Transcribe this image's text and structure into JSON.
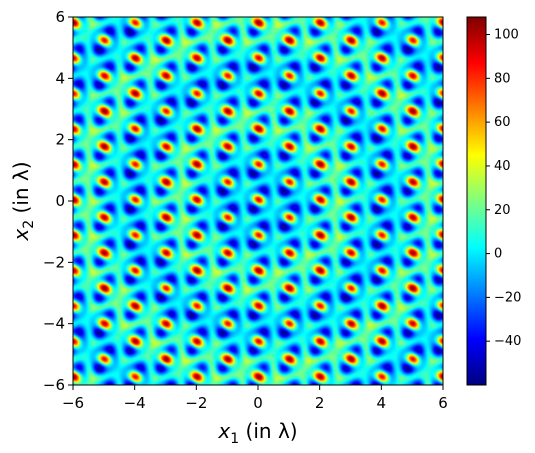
{
  "chart_data": {
    "type": "heatmap",
    "title": "",
    "xlabel": "x",
    "xlabel_sub": "1",
    "xlabel_unit": " (in λ)",
    "ylabel": "x",
    "ylabel_sub": "2",
    "ylabel_unit": " (in λ)",
    "xlim": [
      -6,
      6
    ],
    "ylim": [
      -6,
      6
    ],
    "xticks": [
      -6,
      -4,
      -2,
      0,
      2,
      4,
      6
    ],
    "yticks": [
      -6,
      -4,
      -2,
      0,
      2,
      4,
      6
    ],
    "xtick_labels": [
      "−6",
      "−4",
      "−2",
      "0",
      "2",
      "4",
      "6"
    ],
    "ytick_labels": [
      "−6",
      "−4",
      "−2",
      "0",
      "2",
      "4",
      "6"
    ],
    "colormap": "jet",
    "colorbar": {
      "vmin": -60,
      "vmax": 108,
      "ticks": [
        -40,
        -20,
        0,
        20,
        40,
        60,
        80,
        100
      ],
      "tick_labels": [
        "−40",
        "−20",
        "0",
        "20",
        "40",
        "60",
        "80",
        "100"
      ]
    },
    "field": {
      "description_free_note": "",
      "wave_directions_deg": [
        0,
        60,
        120
      ],
      "wave_number_per_lambda": 6.2832,
      "grid_resolution": 370
    },
    "grid": false
  }
}
